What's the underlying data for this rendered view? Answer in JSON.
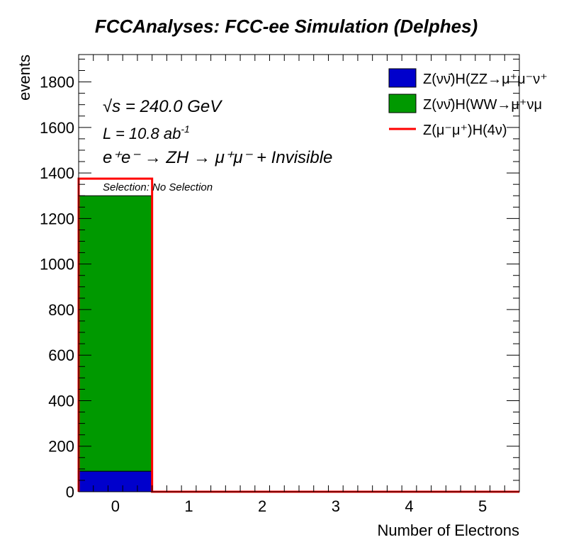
{
  "chart_data": {
    "type": "bar",
    "title": "FCCAnalyses: FCC-ee Simulation (Delphes)",
    "xlabel": "Number of Electrons",
    "ylabel": "events",
    "x_ticks": [
      "0",
      "1",
      "2",
      "3",
      "4",
      "5"
    ],
    "y_ticks": [
      "0",
      "200",
      "400",
      "600",
      "800",
      "1000",
      "1200",
      "1400",
      "1600",
      "1800"
    ],
    "xlim": [
      -0.5,
      5.5
    ],
    "ylim": [
      0,
      1920
    ],
    "bin_edges": [
      -0.5,
      0.5,
      1.5,
      2.5,
      3.5,
      4.5,
      5.5
    ],
    "stacked_series": [
      {
        "name": "Z(νν̄)H(ZZ→μ⁺μ⁻ν⁺",
        "color": "#0000cc",
        "values": [
          90,
          0,
          0,
          0,
          0,
          0
        ]
      },
      {
        "name": "Z(νν̄)H(WW→μ⁺νμ",
        "color": "#009900",
        "values": [
          1210,
          0,
          0,
          0,
          0,
          0
        ]
      }
    ],
    "line_series": [
      {
        "name": "Z(μ⁻μ⁺)H(4ν)",
        "color": "#ff0000",
        "values": [
          1375,
          0,
          0,
          0,
          0,
          0
        ]
      }
    ],
    "annotations": {
      "sqrt_s_symbol": "√s",
      "sqrt_s_value": " = 240.0 GeV",
      "lumi_text": "L = 10.8 ab",
      "lumi_exp": "-1",
      "process_text": "e⁺e⁻ → ZH → μ⁺μ⁻ + Invisible",
      "selection_text": "Selection: No Selection"
    },
    "legend_position": "top-right",
    "grid": false
  }
}
